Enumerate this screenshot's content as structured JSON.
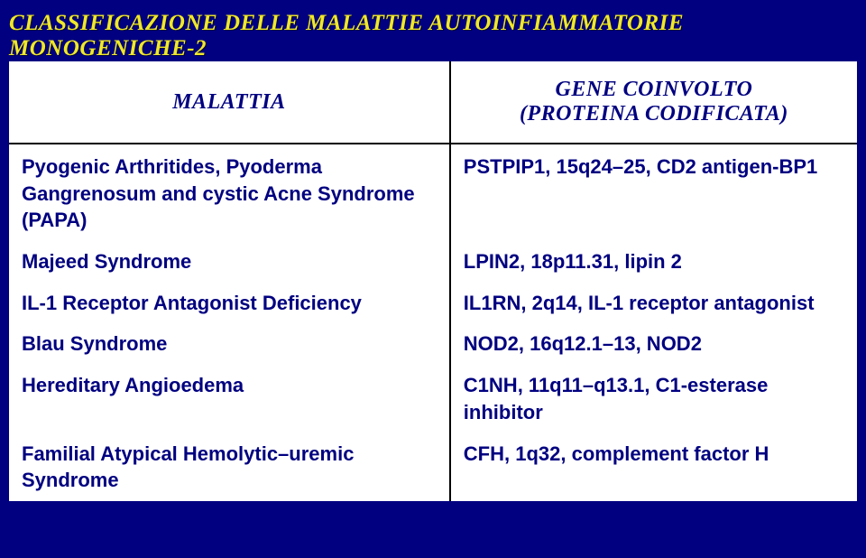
{
  "title": "CLASSIFICAZIONE DELLE MALATTIE AUTOINFIAMMATORIE MONOGENICHE-2",
  "columns": {
    "a": "MALATTIA",
    "b_line1": "GENE COINVOLTO",
    "b_line2": "(PROTEINA CODIFICATA)"
  },
  "rows": [
    {
      "a": "Pyogenic Arthritides, Pyoderma Gangrenosum and cystic Acne Syndrome (PAPA)",
      "b": "PSTPIP1, 15q24–25, CD2 antigen-BP1"
    },
    {
      "a": "Majeed Syndrome",
      "b": "LPIN2, 18p11.31, lipin 2"
    },
    {
      "a": "IL-1 Receptor Antagonist Deficiency",
      "b": "IL1RN, 2q14, IL-1 receptor antagonist"
    },
    {
      "a": "Blau Syndrome",
      "b": "NOD2, 16q12.1–13, NOD2"
    },
    {
      "a": "Hereditary Angioedema",
      "b": "C1NH, 11q11–q13.1, C1-esterase inhibitor"
    },
    {
      "a": "Familial Atypical Hemolytic–uremic Syndrome",
      "b": "CFH, 1q32, complement factor H"
    }
  ],
  "colors": {
    "background": "#000080",
    "title": "#f0e827",
    "cell_text": "#000080",
    "table_bg": "#ffffff",
    "border": "#000000"
  }
}
